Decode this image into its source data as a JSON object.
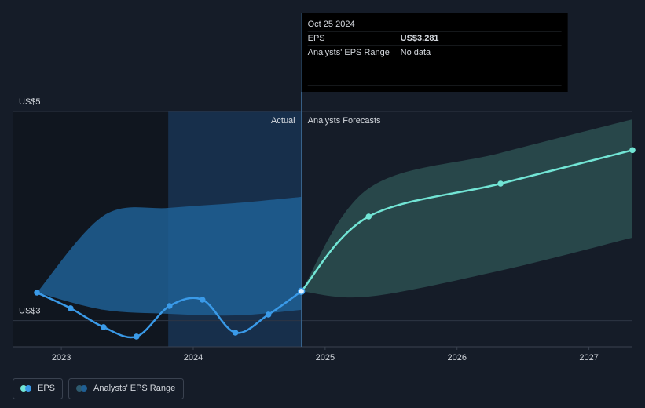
{
  "chart_data": {
    "type": "line",
    "xlim": [
      2022.63,
      2027.33
    ],
    "xticks": [
      2023,
      2024,
      2025,
      2026,
      2027
    ],
    "ylim": [
      2.75,
      5
    ],
    "yticks": [
      {
        "value": 3,
        "label": "US$3"
      },
      {
        "value": 5,
        "label": "US$5"
      }
    ],
    "grid": true,
    "shaded_xlim": [
      2023.81,
      2024.82
    ],
    "actual_label": "Actual",
    "forecast_label": "Analysts Forecasts",
    "series": [
      {
        "name": "EPS",
        "color": "#3a9ae8",
        "forecast_color": "#72e5d5",
        "x": [
          2022.815,
          2023.07,
          2023.32,
          2023.57,
          2023.82,
          2024.07,
          2024.32,
          2024.57,
          2024.82,
          2025.33,
          2026.33,
          2027.33
        ],
        "values": [
          3.268,
          3.118,
          2.938,
          2.848,
          3.14,
          3.2,
          2.885,
          3.058,
          3.281,
          3.995,
          4.31,
          4.63
        ]
      },
      {
        "name": "Analysts' EPS Range",
        "color": "#2e5a6e",
        "segments": [
          {
            "color": "#1f5f94",
            "x": [
              2022.815,
              2023.32,
              2023.82,
              2024.32,
              2024.82
            ],
            "low": [
              3.268,
              3.103,
              3.065,
              3.05,
              3.103
            ],
            "high": [
              3.268,
              4.003,
              4.078,
              4.123,
              4.183
            ]
          },
          {
            "color": "#2c4f50",
            "x": [
              2024.82,
              2025.33,
              2026.33,
              2027.33
            ],
            "low": [
              3.281,
              3.23,
              3.478,
              3.793
            ],
            "high": [
              3.281,
              4.265,
              4.603,
              4.925
            ]
          }
        ]
      }
    ],
    "tooltip": {
      "date": "Oct 25 2024",
      "rows": [
        {
          "label": "EPS",
          "value": "US$3.281"
        },
        {
          "label": "Analysts' EPS Range",
          "value": "No data"
        }
      ]
    }
  }
}
